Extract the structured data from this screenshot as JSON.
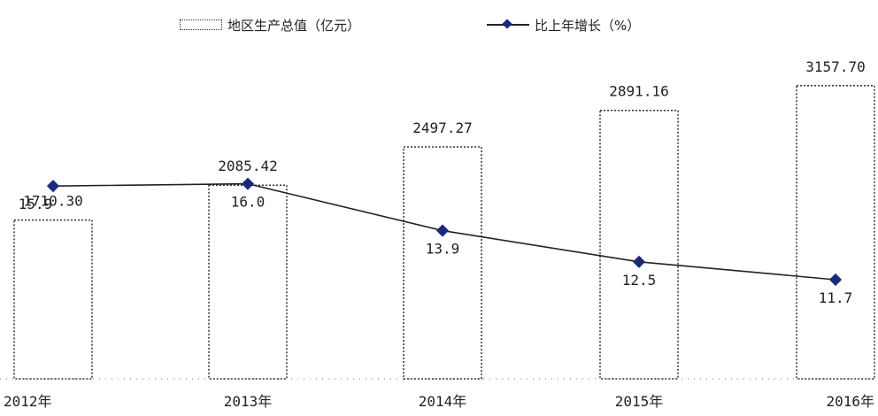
{
  "chart_data": {
    "type": "bar",
    "categories": [
      "2012年",
      "2013年",
      "2014年",
      "2015年",
      "2016年"
    ],
    "series": [
      {
        "name": "地区生产总值（亿元）",
        "type": "bar",
        "values": [
          1710.3,
          2085.42,
          2497.27,
          2891.16,
          3157.7
        ],
        "labels": [
          "1710.30",
          "2085.42",
          "2497.27",
          "2891.16",
          "3157.70"
        ]
      },
      {
        "name": "比上年增长（%）",
        "type": "line",
        "values": [
          15.9,
          16.0,
          13.9,
          12.5,
          11.7
        ],
        "labels": [
          "15.9",
          "16.0",
          "13.9",
          "12.5",
          "11.7"
        ]
      }
    ],
    "legend_position": "top",
    "grid": false,
    "colors": {
      "bar_border": "#333333",
      "line": "#222222",
      "marker": "#1a2a7a",
      "text": "#222222"
    }
  }
}
